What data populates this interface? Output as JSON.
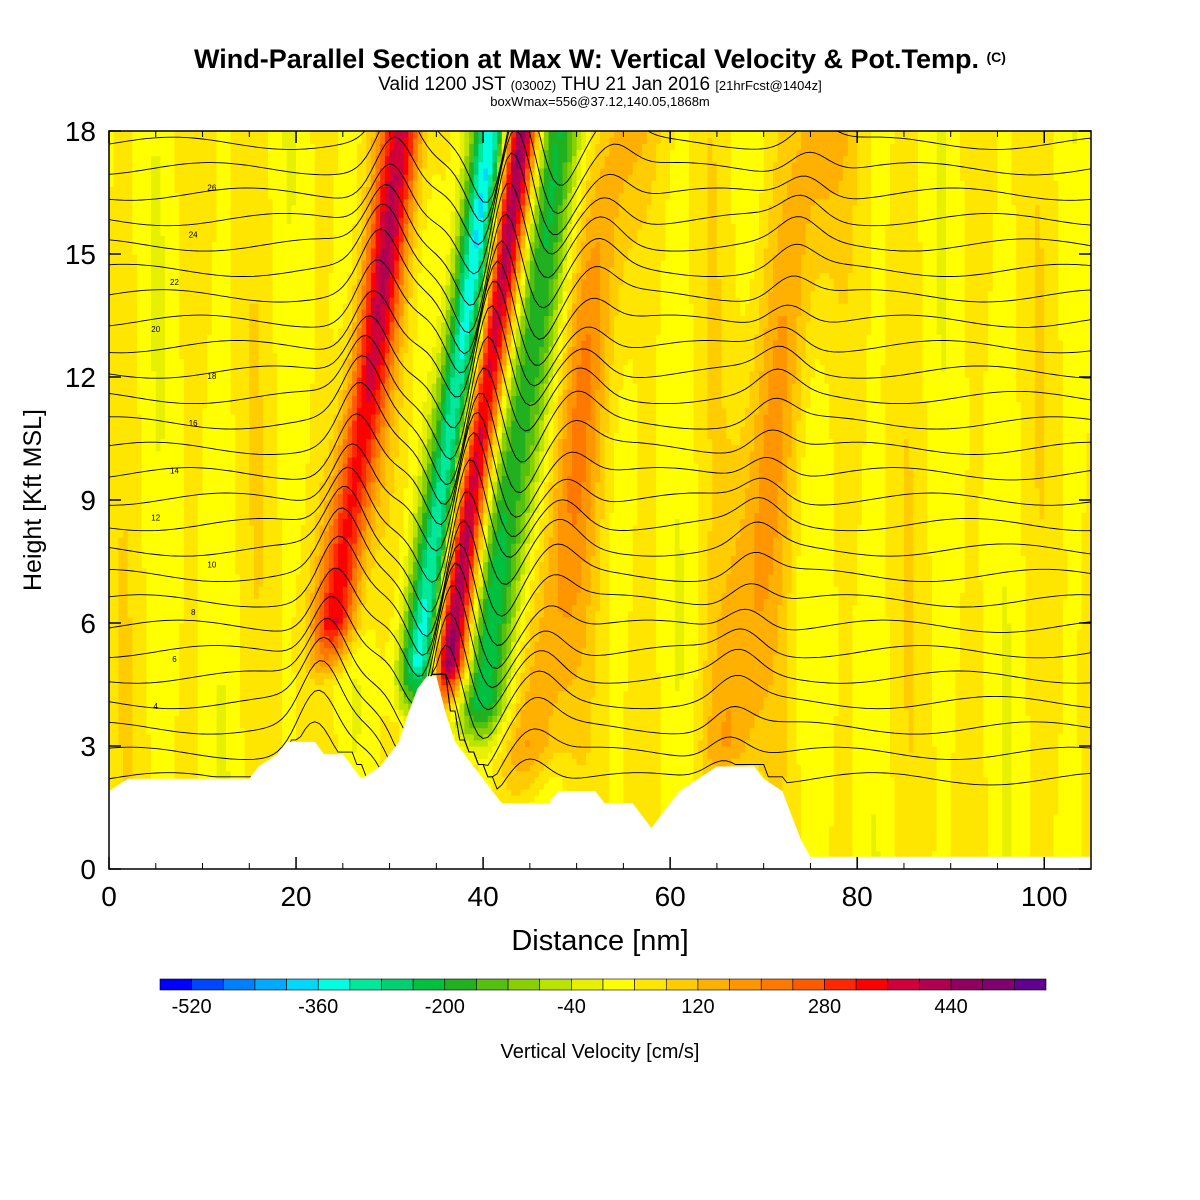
{
  "title": {
    "main": "Wind-Parallel Section at Max W: Vertical Velocity & Pot.Temp.",
    "copyright": "(C)",
    "valid_prefix": "Valid 1200 JST",
    "valid_utc": "(0300Z)",
    "valid_date": "THU 21 Jan 2016",
    "forecast": "[21hrFcst@1404z]",
    "box": "boxWmax=556@37.12,140.05,1868m"
  },
  "chart_data": {
    "type": "heatmap",
    "xlabel": "Distance [nm]",
    "ylabel": "Height [Kft MSL]",
    "xlim": [
      0,
      105
    ],
    "ylim": [
      0,
      18
    ],
    "xticks": [
      0,
      20,
      40,
      60,
      80,
      100
    ],
    "yticks": [
      0,
      3,
      6,
      9,
      12,
      15,
      18
    ],
    "colorbar": {
      "label": "Vertical Velocity [cm/s]",
      "tick_labels": [
        -520,
        -360,
        -200,
        -40,
        120,
        280,
        440
      ],
      "levels_min": -560,
      "levels_step": 40,
      "colors": [
        "#0000ff",
        "#0045ff",
        "#0080ff",
        "#00aaff",
        "#00d8ff",
        "#00ffe0",
        "#00e89a",
        "#00d070",
        "#00c040",
        "#20b020",
        "#55c010",
        "#88d000",
        "#b8e400",
        "#e6f000",
        "#ffff00",
        "#ffe600",
        "#ffcc00",
        "#ffb000",
        "#ff9600",
        "#ff7800",
        "#ff5a00",
        "#ff2800",
        "#ff0000",
        "#d0003a",
        "#b00050",
        "#900060",
        "#800070",
        "#600090"
      ]
    },
    "w_features": [
      {
        "kind": "updraft",
        "x": 26,
        "z_bottom": 6,
        "z_top": 18,
        "w_max": 330
      },
      {
        "kind": "downdraft",
        "x": 36,
        "z_bottom": 5,
        "z_top": 18,
        "w_min": -480
      },
      {
        "kind": "updraft",
        "x": 38.5,
        "z_bottom": 5,
        "z_top": 18,
        "w_max": 556
      },
      {
        "kind": "downdraft",
        "x": 42.5,
        "z_bottom": 4,
        "z_top": 18,
        "w_min": -260
      },
      {
        "kind": "updraft",
        "x": 49,
        "z_bottom": 3,
        "z_top": 18,
        "w_max": 140
      },
      {
        "kind": "updraft",
        "x": 70,
        "z_bottom": 3,
        "z_top": 18,
        "w_max": 120
      }
    ],
    "theta_contour_labels": [
      "4",
      "6",
      "8",
      "10",
      "12",
      "14",
      "16",
      "18",
      "20",
      "22",
      "24",
      "26"
    ],
    "terrain": [
      [
        0,
        1.9
      ],
      [
        2,
        2.2
      ],
      [
        15,
        2.2
      ],
      [
        16,
        2.5
      ],
      [
        18,
        2.8
      ],
      [
        19,
        3.1
      ],
      [
        22,
        3.1
      ],
      [
        23,
        2.8
      ],
      [
        25,
        2.8
      ],
      [
        26,
        2.5
      ],
      [
        27,
        2.2
      ],
      [
        29,
        2.5
      ],
      [
        30,
        2.8
      ],
      [
        31,
        3.1
      ],
      [
        32,
        3.8
      ],
      [
        33,
        4.4
      ],
      [
        34,
        4.7
      ],
      [
        35,
        4.7
      ],
      [
        36,
        3.8
      ],
      [
        37,
        3.1
      ],
      [
        38,
        2.8
      ],
      [
        39,
        2.5
      ],
      [
        40,
        2.2
      ],
      [
        41,
        1.9
      ],
      [
        42,
        1.6
      ],
      [
        47,
        1.6
      ],
      [
        48,
        1.9
      ],
      [
        52,
        1.9
      ],
      [
        53,
        1.6
      ],
      [
        56,
        1.6
      ],
      [
        57,
        1.3
      ],
      [
        58,
        1.0
      ],
      [
        59,
        1.3
      ],
      [
        60,
        1.6
      ],
      [
        61,
        1.9
      ],
      [
        63,
        2.2
      ],
      [
        65,
        2.5
      ],
      [
        69,
        2.5
      ],
      [
        70,
        2.2
      ],
      [
        72,
        1.9
      ],
      [
        73,
        1.3
      ],
      [
        74,
        0.7
      ],
      [
        75,
        0.3
      ],
      [
        80,
        0.3
      ],
      [
        85,
        0.3
      ],
      [
        105,
        0.3
      ]
    ]
  }
}
